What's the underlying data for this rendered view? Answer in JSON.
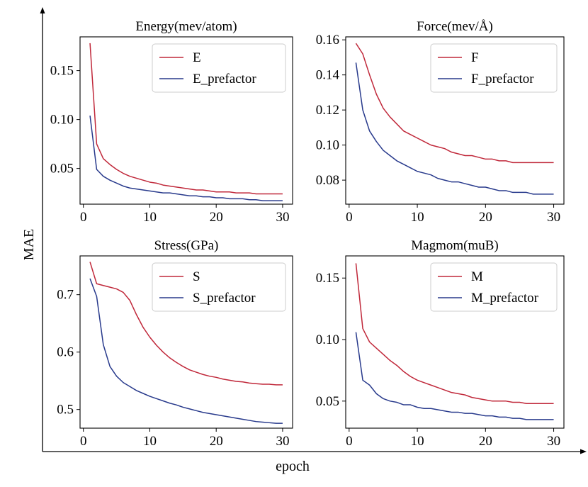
{
  "figure": {
    "xlabel": "epoch",
    "ylabel": "MAE",
    "colors": {
      "red": "#c0283a",
      "blue": "#283a8c",
      "axis": "#000000",
      "legend_border": "#cccccc"
    }
  },
  "chart_data": [
    {
      "type": "line",
      "title": "Energy(mev/atom)",
      "xlim": [
        -0.5,
        31.5
      ],
      "ylim": [
        0.0135,
        0.1845
      ],
      "xticks": [
        0,
        10,
        20,
        30
      ],
      "xtick_labels": [
        "0",
        "10",
        "20",
        "30"
      ],
      "yticks": [
        0.05,
        0.1,
        0.15
      ],
      "ytick_labels": [
        "0.05",
        "0.10",
        "0.15"
      ],
      "legend_position": "upper right",
      "series": [
        {
          "name": "E",
          "color": "#c0283a",
          "x": [
            1,
            2,
            3,
            4,
            5,
            6,
            7,
            8,
            9,
            10,
            11,
            12,
            13,
            14,
            15,
            16,
            17,
            18,
            19,
            20,
            21,
            22,
            23,
            24,
            25,
            26,
            27,
            28,
            29,
            30
          ],
          "y": [
            0.178,
            0.075,
            0.06,
            0.054,
            0.049,
            0.045,
            0.042,
            0.04,
            0.038,
            0.036,
            0.035,
            0.033,
            0.032,
            0.031,
            0.03,
            0.029,
            0.028,
            0.028,
            0.027,
            0.026,
            0.026,
            0.026,
            0.025,
            0.025,
            0.025,
            0.024,
            0.024,
            0.024,
            0.024,
            0.024
          ]
        },
        {
          "name": "E_prefactor",
          "color": "#283a8c",
          "x": [
            1,
            2,
            3,
            4,
            5,
            6,
            7,
            8,
            9,
            10,
            11,
            12,
            13,
            14,
            15,
            16,
            17,
            18,
            19,
            20,
            21,
            22,
            23,
            24,
            25,
            26,
            27,
            28,
            29,
            30
          ],
          "y": [
            0.104,
            0.049,
            0.042,
            0.038,
            0.035,
            0.032,
            0.03,
            0.029,
            0.028,
            0.027,
            0.026,
            0.025,
            0.025,
            0.024,
            0.023,
            0.022,
            0.022,
            0.021,
            0.021,
            0.02,
            0.02,
            0.019,
            0.019,
            0.019,
            0.018,
            0.018,
            0.017,
            0.017,
            0.017,
            0.017
          ]
        }
      ]
    },
    {
      "type": "line",
      "title": "Force(mev/Å)",
      "xlim": [
        -0.5,
        31.5
      ],
      "ylim": [
        0.0663,
        0.1617
      ],
      "xticks": [
        0,
        10,
        20,
        30
      ],
      "xtick_labels": [
        "0",
        "10",
        "20",
        "30"
      ],
      "yticks": [
        0.08,
        0.1,
        0.12,
        0.14,
        0.16
      ],
      "ytick_labels": [
        "0.08",
        "0.10",
        "0.12",
        "0.14",
        "0.16"
      ],
      "legend_position": "upper right",
      "series": [
        {
          "name": "F",
          "color": "#c0283a",
          "x": [
            1,
            2,
            3,
            4,
            5,
            6,
            7,
            8,
            9,
            10,
            11,
            12,
            13,
            14,
            15,
            16,
            17,
            18,
            19,
            20,
            21,
            22,
            23,
            24,
            25,
            26,
            27,
            28,
            29,
            30
          ],
          "y": [
            0.158,
            0.152,
            0.14,
            0.129,
            0.121,
            0.116,
            0.112,
            0.108,
            0.106,
            0.104,
            0.102,
            0.1,
            0.099,
            0.098,
            0.096,
            0.095,
            0.094,
            0.094,
            0.093,
            0.092,
            0.092,
            0.091,
            0.091,
            0.09,
            0.09,
            0.09,
            0.09,
            0.09,
            0.09,
            0.09
          ]
        },
        {
          "name": "F_prefactor",
          "color": "#283a8c",
          "x": [
            1,
            2,
            3,
            4,
            5,
            6,
            7,
            8,
            9,
            10,
            11,
            12,
            13,
            14,
            15,
            16,
            17,
            18,
            19,
            20,
            21,
            22,
            23,
            24,
            25,
            26,
            27,
            28,
            29,
            30
          ],
          "y": [
            0.147,
            0.12,
            0.108,
            0.102,
            0.097,
            0.094,
            0.091,
            0.089,
            0.087,
            0.085,
            0.084,
            0.083,
            0.081,
            0.08,
            0.079,
            0.079,
            0.078,
            0.077,
            0.076,
            0.076,
            0.075,
            0.074,
            0.074,
            0.073,
            0.073,
            0.073,
            0.072,
            0.072,
            0.072,
            0.072
          ]
        }
      ]
    },
    {
      "type": "line",
      "title": "Stress(GPa)",
      "xlim": [
        -0.5,
        31.5
      ],
      "ylim": [
        0.4675,
        0.7675
      ],
      "xticks": [
        0,
        10,
        20,
        30
      ],
      "xtick_labels": [
        "0",
        "10",
        "20",
        "30"
      ],
      "yticks": [
        0.5,
        0.6,
        0.7
      ],
      "ytick_labels": [
        "0.5",
        "0.6",
        "0.7"
      ],
      "legend_position": "upper right",
      "series": [
        {
          "name": "S",
          "color": "#c0283a",
          "x": [
            1,
            2,
            3,
            4,
            5,
            6,
            7,
            8,
            9,
            10,
            11,
            12,
            13,
            14,
            15,
            16,
            17,
            18,
            19,
            20,
            21,
            22,
            23,
            24,
            25,
            26,
            27,
            28,
            29,
            30
          ],
          "y": [
            0.757,
            0.719,
            0.716,
            0.713,
            0.71,
            0.704,
            0.69,
            0.665,
            0.643,
            0.626,
            0.612,
            0.6,
            0.59,
            0.582,
            0.575,
            0.569,
            0.565,
            0.561,
            0.558,
            0.556,
            0.553,
            0.551,
            0.549,
            0.548,
            0.546,
            0.545,
            0.544,
            0.544,
            0.543,
            0.543
          ]
        },
        {
          "name": "S_prefactor",
          "color": "#283a8c",
          "x": [
            1,
            2,
            3,
            4,
            5,
            6,
            7,
            8,
            9,
            10,
            11,
            12,
            13,
            14,
            15,
            16,
            17,
            18,
            19,
            20,
            21,
            22,
            23,
            24,
            25,
            26,
            27,
            28,
            29,
            30
          ],
          "y": [
            0.728,
            0.697,
            0.613,
            0.575,
            0.558,
            0.547,
            0.54,
            0.533,
            0.528,
            0.523,
            0.519,
            0.515,
            0.511,
            0.508,
            0.504,
            0.501,
            0.498,
            0.495,
            0.493,
            0.491,
            0.489,
            0.487,
            0.485,
            0.483,
            0.481,
            0.479,
            0.478,
            0.477,
            0.476,
            0.476
          ]
        }
      ]
    },
    {
      "type": "line",
      "title": "Magmom(muB)",
      "xlim": [
        -0.5,
        31.5
      ],
      "ylim": [
        0.028,
        0.168
      ],
      "xticks": [
        0,
        10,
        20,
        30
      ],
      "xtick_labels": [
        "0",
        "10",
        "20",
        "30"
      ],
      "yticks": [
        0.05,
        0.1,
        0.15
      ],
      "ytick_labels": [
        "0.05",
        "0.10",
        "0.15"
      ],
      "legend_position": "upper right",
      "series": [
        {
          "name": "M",
          "color": "#c0283a",
          "x": [
            1,
            2,
            3,
            4,
            5,
            6,
            7,
            8,
            9,
            10,
            11,
            12,
            13,
            14,
            15,
            16,
            17,
            18,
            19,
            20,
            21,
            22,
            23,
            24,
            25,
            26,
            27,
            28,
            29,
            30
          ],
          "y": [
            0.162,
            0.109,
            0.098,
            0.093,
            0.088,
            0.083,
            0.079,
            0.074,
            0.07,
            0.067,
            0.065,
            0.063,
            0.061,
            0.059,
            0.057,
            0.056,
            0.055,
            0.053,
            0.052,
            0.051,
            0.05,
            0.05,
            0.05,
            0.049,
            0.049,
            0.048,
            0.048,
            0.048,
            0.048,
            0.048
          ]
        },
        {
          "name": "M_prefactor",
          "color": "#283a8c",
          "x": [
            1,
            2,
            3,
            4,
            5,
            6,
            7,
            8,
            9,
            10,
            11,
            12,
            13,
            14,
            15,
            16,
            17,
            18,
            19,
            20,
            21,
            22,
            23,
            24,
            25,
            26,
            27,
            28,
            29,
            30
          ],
          "y": [
            0.106,
            0.067,
            0.063,
            0.056,
            0.052,
            0.05,
            0.049,
            0.047,
            0.047,
            0.045,
            0.044,
            0.044,
            0.043,
            0.042,
            0.041,
            0.041,
            0.04,
            0.04,
            0.039,
            0.038,
            0.038,
            0.037,
            0.037,
            0.036,
            0.036,
            0.035,
            0.035,
            0.035,
            0.035,
            0.035
          ]
        }
      ]
    }
  ]
}
